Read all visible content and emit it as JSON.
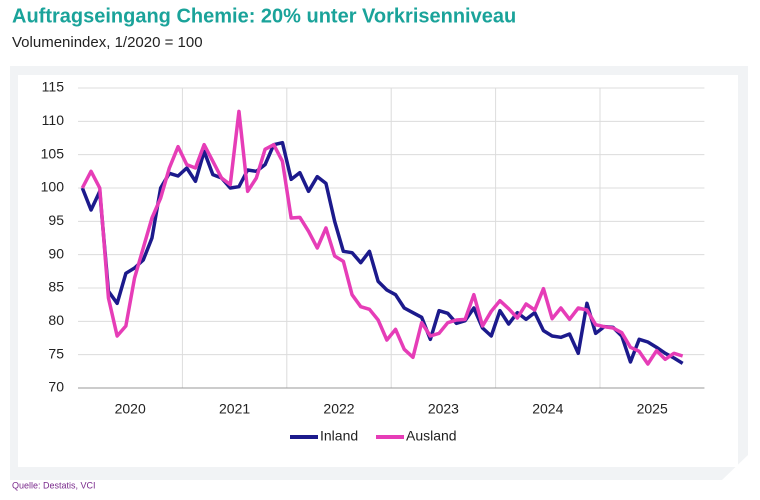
{
  "chart_data": {
    "type": "line",
    "title": "Auftragseingang Chemie: 20% unter Vorkrisenniveau",
    "subtitle": "Volumenindex, 1/2020 = 100",
    "source": "Quelle: Destatis, VCI",
    "year_labels": [
      "2020",
      "2021",
      "2022",
      "2023",
      "2024",
      "2025"
    ],
    "ylim": [
      70,
      115
    ],
    "yticks": [
      70,
      75,
      80,
      85,
      90,
      95,
      100,
      105,
      110,
      115
    ],
    "grid": true,
    "series": [
      {
        "name": "Inland",
        "color": "#1c1a8c",
        "values": [
          100,
          96.7,
          99.5,
          84.5,
          82.7,
          87.2,
          88,
          89.2,
          92.5,
          100,
          102.2,
          101.8,
          103,
          101,
          105.5,
          102,
          101.5,
          100,
          100.2,
          102.7,
          102.5,
          103.5,
          106.5,
          106.8,
          101.3,
          102.3,
          99.5,
          101.7,
          100.7,
          95,
          90.5,
          90.3,
          88.8,
          90.5,
          86,
          84.7,
          84,
          82,
          81.3,
          80.6,
          77.3,
          81.6,
          81.2,
          79.7,
          80.1,
          82,
          79,
          77.8,
          81.6,
          79.6,
          81.3,
          80.3,
          81.3,
          78.6,
          77.8,
          77.6,
          78.1,
          75.2,
          82.7,
          78.2,
          79.2,
          79.1,
          77.8,
          73.9,
          77.3,
          76.9,
          76.1,
          75.2,
          74.5,
          73.7
        ]
      },
      {
        "name": "Ausland",
        "color": "#e63db7",
        "values": [
          100,
          102.5,
          100,
          83.5,
          77.8,
          79.3,
          86.5,
          91,
          95.5,
          98.5,
          103,
          106.2,
          103.5,
          103,
          106.5,
          104,
          101.5,
          100.5,
          111.5,
          99.5,
          101.5,
          105.8,
          106.5,
          104,
          95.5,
          95.6,
          93.5,
          91,
          94,
          89.8,
          89,
          84,
          82.2,
          81.8,
          80.2,
          77.2,
          78.8,
          75.8,
          74.6,
          79.8,
          77.8,
          78.2,
          79.8,
          80.2,
          80.3,
          84,
          79.3,
          81.5,
          83.1,
          81.9,
          80.5,
          82.6,
          81.7,
          84.9,
          80.4,
          82,
          80.3,
          82,
          81.7,
          79.5,
          79.2,
          79,
          78.3,
          76.1,
          75.5,
          73.6,
          75.6,
          74.3,
          75.2,
          74.8
        ]
      }
    ]
  }
}
